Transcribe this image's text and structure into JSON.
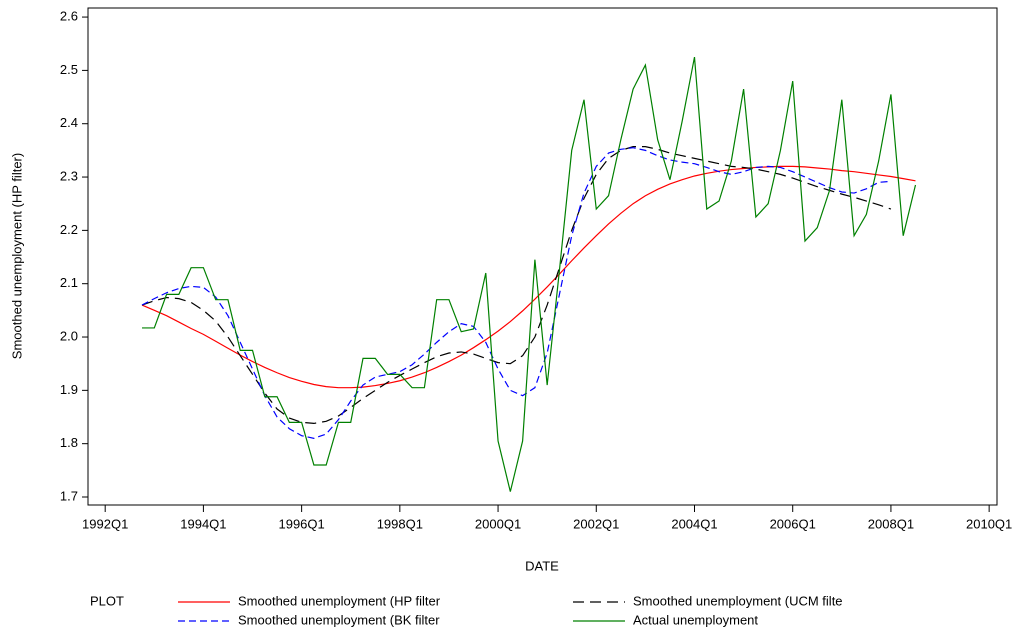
{
  "chart_data": {
    "type": "line",
    "xlabel": "DATE",
    "ylabel": "Smoothed unemployment (HP filter)",
    "legend_title": "PLOT",
    "legend": "bottom",
    "xlim": [
      1991.65,
      2010.16
    ],
    "ylim": [
      1.685,
      2.617
    ],
    "xticks": [
      {
        "value": 1992,
        "label": "1992Q1"
      },
      {
        "value": 1994,
        "label": "1994Q1"
      },
      {
        "value": 1996,
        "label": "1996Q1"
      },
      {
        "value": 1998,
        "label": "1998Q1"
      },
      {
        "value": 2000,
        "label": "2000Q1"
      },
      {
        "value": 2002,
        "label": "2002Q1"
      },
      {
        "value": 2004,
        "label": "2004Q1"
      },
      {
        "value": 2006,
        "label": "2006Q1"
      },
      {
        "value": 2008,
        "label": "2008Q1"
      },
      {
        "value": 2010,
        "label": "2010Q1"
      }
    ],
    "yticks": [
      1.7,
      1.8,
      1.9,
      {
        "value": 2,
        "label": "2.0"
      },
      2.1,
      2.2,
      2.3,
      2.4,
      2.5,
      2.6
    ],
    "x": [
      1992.75,
      1993,
      1993.25,
      1993.5,
      1993.75,
      1994,
      1994.25,
      1994.5,
      1994.75,
      1995,
      1995.25,
      1995.5,
      1995.75,
      1996,
      1996.25,
      1996.5,
      1996.75,
      1997,
      1997.25,
      1997.5,
      1997.75,
      1998,
      1998.25,
      1998.5,
      1998.75,
      1999,
      1999.25,
      1999.5,
      1999.75,
      2000,
      2000.25,
      2000.5,
      2000.75,
      2001,
      2001.25,
      2001.5,
      2001.75,
      2002,
      2002.25,
      2002.5,
      2002.75,
      2003,
      2003.25,
      2003.5,
      2003.75,
      2004,
      2004.25,
      2004.5,
      2004.75,
      2005,
      2005.25,
      2005.5,
      2005.75,
      2006,
      2006.25,
      2006.5,
      2006.75,
      2007,
      2007.25,
      2007.5,
      2007.75,
      2008,
      2008.25,
      2008.5
    ],
    "series": [
      {
        "name": "Smoothed unemployment (HP filter",
        "color": "#ff0000",
        "dash": "none",
        "values": [
          2.06,
          2.05,
          2.04,
          2.028,
          2.016,
          2.005,
          1.992,
          1.979,
          1.966,
          1.954,
          1.943,
          1.933,
          1.924,
          1.917,
          1.911,
          1.907,
          1.905,
          1.905,
          1.906,
          1.909,
          1.913,
          1.918,
          1.925,
          1.933,
          1.943,
          1.954,
          1.966,
          1.98,
          1.995,
          2.011,
          2.029,
          2.049,
          2.071,
          2.094,
          2.118,
          2.143,
          2.167,
          2.19,
          2.212,
          2.232,
          2.25,
          2.265,
          2.277,
          2.287,
          2.295,
          2.302,
          2.307,
          2.311,
          2.314,
          2.316,
          2.318,
          2.319,
          2.32,
          2.32,
          2.319,
          2.317,
          2.315,
          2.312,
          2.31,
          2.307,
          2.304,
          2.301,
          2.297,
          2.293
        ]
      },
      {
        "name": "Smoothed unemployment (UCM filte",
        "color": "#000000",
        "dash": "11 6",
        "values": [
          2.06,
          2.068,
          2.074,
          2.072,
          2.065,
          2.05,
          2.03,
          2.0,
          1.965,
          1.93,
          1.895,
          1.865,
          1.848,
          1.84,
          1.838,
          1.842,
          1.852,
          1.868,
          1.885,
          1.9,
          1.915,
          1.928,
          1.94,
          1.952,
          1.963,
          1.97,
          1.972,
          1.968,
          1.96,
          1.952,
          1.95,
          1.965,
          2.0,
          2.06,
          2.13,
          2.2,
          2.26,
          2.305,
          2.335,
          2.35,
          2.357,
          2.357,
          2.352,
          2.345,
          2.34,
          2.335,
          2.33,
          2.325,
          2.32,
          2.318,
          2.315,
          2.31,
          2.305,
          2.298,
          2.29,
          2.282,
          2.275,
          2.268,
          2.262,
          2.255,
          2.248,
          2.24,
          null,
          null
        ]
      },
      {
        "name": "Smoothed unemployment (BK filter",
        "color": "#0000ff",
        "dash": "7 4",
        "values": [
          2.06,
          2.072,
          2.083,
          2.091,
          2.095,
          2.093,
          2.075,
          2.04,
          1.99,
          1.94,
          1.89,
          1.85,
          1.828,
          1.815,
          1.81,
          1.818,
          1.845,
          1.88,
          1.91,
          1.925,
          1.93,
          1.935,
          1.948,
          1.968,
          1.99,
          2.01,
          2.025,
          2.02,
          1.99,
          1.94,
          1.9,
          1.89,
          1.905,
          1.97,
          2.08,
          2.19,
          2.27,
          2.32,
          2.345,
          2.352,
          2.355,
          2.35,
          2.34,
          2.332,
          2.328,
          2.325,
          2.318,
          2.31,
          2.305,
          2.31,
          2.318,
          2.32,
          2.318,
          2.31,
          2.3,
          2.29,
          2.28,
          2.272,
          2.27,
          2.278,
          2.29,
          2.292,
          null,
          null
        ]
      },
      {
        "name": "Actual unemployment",
        "color": "#008000",
        "dash": "none",
        "values": [
          2.017,
          2.017,
          2.08,
          2.08,
          2.13,
          2.13,
          2.07,
          2.07,
          1.975,
          1.975,
          1.888,
          1.888,
          1.84,
          1.84,
          1.76,
          1.76,
          1.84,
          1.84,
          1.96,
          1.96,
          1.93,
          1.93,
          1.905,
          1.905,
          2.07,
          2.07,
          2.01,
          2.015,
          2.12,
          1.805,
          1.71,
          1.805,
          2.145,
          1.91,
          2.125,
          2.35,
          2.445,
          2.24,
          2.265,
          2.37,
          2.465,
          2.51,
          2.37,
          2.295,
          2.405,
          2.525,
          2.24,
          2.255,
          2.33,
          2.465,
          2.225,
          2.25,
          2.35,
          2.48,
          2.18,
          2.205,
          2.275,
          2.445,
          2.19,
          2.23,
          2.33,
          2.455,
          2.19,
          2.285
        ]
      }
    ]
  }
}
